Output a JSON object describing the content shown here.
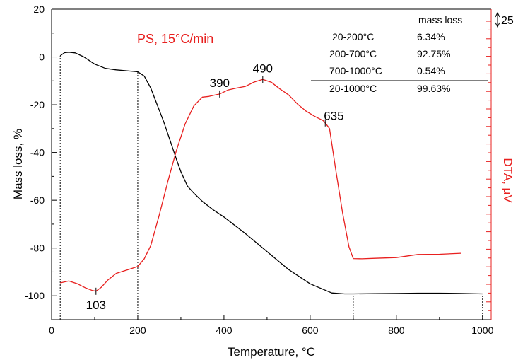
{
  "chart_data": {
    "type": "line",
    "title": "PS, 15°C/min",
    "xlabel": "Temperature, °C",
    "ylabel": "Mass loss, %",
    "y2label": "DTA, μV",
    "y2_scale_bar_label": "25",
    "xlim": [
      0,
      1020
    ],
    "ylim": [
      -110,
      20
    ],
    "xticks": [
      0,
      200,
      400,
      600,
      800,
      1000
    ],
    "yticks": [
      20,
      0,
      -20,
      -40,
      -60,
      -80,
      -100
    ],
    "grid": false,
    "series": [
      {
        "name": "",
        "axis": "left",
        "color": "#000000",
        "x": [
          20,
          30,
          40,
          55,
          75,
          100,
          125,
          150,
          175,
          200,
          215,
          230,
          245,
          260,
          275,
          290,
          300,
          315,
          330,
          350,
          375,
          400,
          450,
          500,
          550,
          600,
          650,
          680,
          700,
          750,
          800,
          850,
          900,
          950,
          1000
        ],
        "y": [
          0.5,
          1.8,
          2,
          1.7,
          0,
          -3,
          -4.8,
          -5.4,
          -5.8,
          -6.2,
          -8,
          -13,
          -20,
          -27,
          -35,
          -43,
          -48,
          -54,
          -57,
          -60.5,
          -64,
          -67,
          -74,
          -81.5,
          -89,
          -95,
          -98.8,
          -99.2,
          -99.2,
          -99.1,
          -99,
          -98.9,
          -98.9,
          -99,
          -99.2
        ]
      },
      {
        "name": "",
        "axis": "right",
        "color": "#e8201f",
        "x": [
          20,
          40,
          60,
          80,
          95,
          103,
          115,
          130,
          150,
          175,
          200,
          215,
          230,
          250,
          270,
          290,
          310,
          330,
          350,
          365,
          375,
          390,
          410,
          430,
          450,
          470,
          490,
          510,
          530,
          550,
          570,
          590,
          610,
          630,
          635,
          645,
          660,
          675,
          690,
          700,
          720,
          750,
          800,
          850,
          900,
          950
        ],
        "y": [
          -94.6,
          -93.8,
          -95,
          -96.8,
          -97.8,
          -98.1,
          -96.5,
          -93.5,
          -90.6,
          -89.2,
          -87.7,
          -84.5,
          -79,
          -66,
          -52,
          -39,
          -28,
          -20.5,
          -16.8,
          -16.5,
          -16.1,
          -15.5,
          -13.8,
          -13,
          -12.3,
          -10.5,
          -9.4,
          -10.6,
          -13.4,
          -15.9,
          -19.6,
          -22.6,
          -24.8,
          -26.6,
          -27.6,
          -30,
          -48,
          -65,
          -79.5,
          -84.4,
          -84.5,
          -84.3,
          -84,
          -82.7,
          -82.6,
          -82.2
        ]
      }
    ],
    "reference_lines_x": [
      20,
      200,
      700,
      1000
    ],
    "annotations": [
      {
        "text": "103",
        "x": 103,
        "y": -98.1
      },
      {
        "text": "390",
        "x": 390,
        "y": -15.5
      },
      {
        "text": "490",
        "x": 490,
        "y": -9.4
      },
      {
        "text": "635",
        "x": 635,
        "y": -27.6
      }
    ],
    "table": {
      "header": "mass loss",
      "rows": [
        {
          "range": "20-200°C",
          "value": "6.34%"
        },
        {
          "range": "200-700°C",
          "value": "92.75%"
        },
        {
          "range": "700-1000°C",
          "value": "0.54%"
        }
      ],
      "total": {
        "range": "20-1000°C",
        "value": "99.63%"
      }
    },
    "colors": {
      "tg": "#000000",
      "dta": "#e8201f",
      "axis": "#000000",
      "right_axis": "#e8201f"
    }
  }
}
